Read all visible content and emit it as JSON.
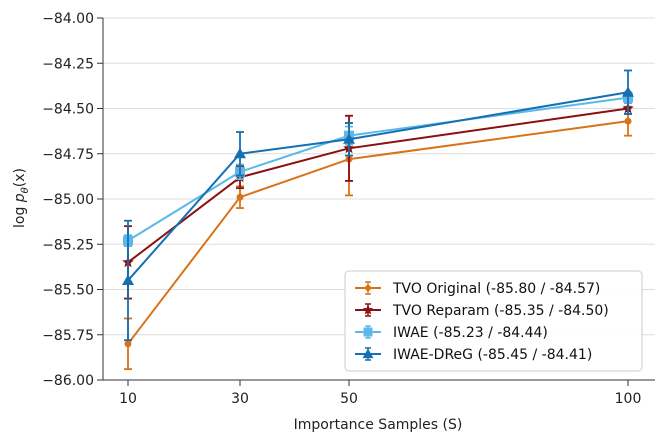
{
  "chart_data": {
    "type": "line",
    "title": "",
    "xlabel": "Importance Samples (S)",
    "ylabel": "log p_θ(x)",
    "ylabel_display": {
      "main": "log ",
      "p": "p",
      "sub": "θ",
      "rest": "(x)"
    },
    "x": [
      10,
      30,
      50,
      100
    ],
    "x_tick_labels": [
      "10",
      "30",
      "50",
      "100"
    ],
    "ylim": [
      -86.0,
      -84.0
    ],
    "y_ticks": [
      -84.0,
      -84.25,
      -84.5,
      -84.75,
      -85.0,
      -85.25,
      -85.5,
      -85.75,
      -86.0
    ],
    "y_tick_labels": [
      "−84.00",
      "−84.25",
      "−84.50",
      "−84.75",
      "−85.00",
      "−85.25",
      "−85.50",
      "−85.75",
      "−86.00"
    ],
    "grid": "horizontal",
    "legend_position": "bottom-right",
    "series": [
      {
        "name": "TVO Original (-85.80 / -84.57)",
        "color": "#d97318",
        "marker": "circle",
        "values": [
          -85.8,
          -84.99,
          -84.78,
          -84.57
        ],
        "errors": [
          0.14,
          0.06,
          0.2,
          0.08
        ]
      },
      {
        "name": "TVO Reparam (-85.35 / -84.50)",
        "color": "#8b1010",
        "marker": "star",
        "values": [
          -85.35,
          -84.88,
          -84.72,
          -84.5
        ],
        "errors": [
          0.2,
          0.06,
          0.18,
          0.03
        ]
      },
      {
        "name": "IWAE (-85.23 / -84.44)",
        "color": "#5db8e8",
        "marker": "square",
        "values": [
          -85.23,
          -84.85,
          -84.65,
          -84.44
        ],
        "errors": [
          0.03,
          0.04,
          0.05,
          0.03
        ]
      },
      {
        "name": "IWAE-DReG (-85.45 / -84.41)",
        "color": "#1570b3",
        "marker": "triangle",
        "values": [
          -85.45,
          -84.75,
          -84.67,
          -84.41
        ],
        "errors": [
          0.33,
          0.12,
          0.09,
          0.12
        ]
      }
    ]
  }
}
